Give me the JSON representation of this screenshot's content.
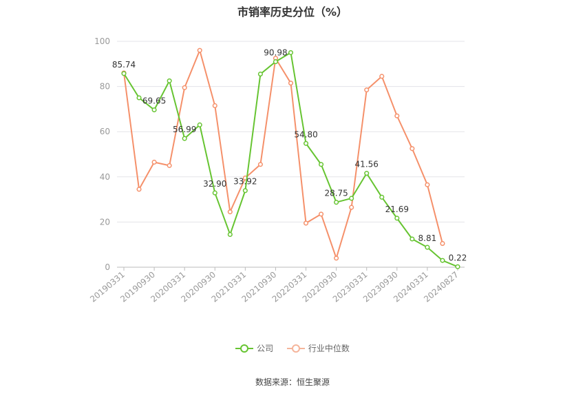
{
  "chart_data": {
    "type": "line",
    "title": "市销率历史分位（%）",
    "ylim": [
      0,
      100
    ],
    "yticks": [
      0,
      20,
      40,
      60,
      80,
      100
    ],
    "x": [
      "20190331",
      "20190630",
      "20190930",
      "20191231",
      "20200331",
      "20200630",
      "20200930",
      "20201231",
      "20210331",
      "20210630",
      "20210930",
      "20211231",
      "20220331",
      "20220630",
      "20220930",
      "20221231",
      "20230331",
      "20230630",
      "20230930",
      "20231231",
      "20240331",
      "20240630",
      "20240827"
    ],
    "xtick_labels": [
      "20190331",
      "20190930",
      "20200331",
      "20200930",
      "20210331",
      "20210930",
      "20220331",
      "20220930",
      "20230331",
      "20230930",
      "20240331",
      "20240827"
    ],
    "series": [
      {
        "name": "公司",
        "color": "#66c431",
        "values": [
          85.74,
          75.0,
          69.65,
          82.5,
          56.99,
          63.0,
          32.9,
          14.5,
          33.92,
          85.5,
          90.98,
          95.0,
          54.8,
          45.5,
          28.75,
          30.5,
          41.56,
          31.0,
          21.69,
          12.5,
          8.81,
          3.0,
          0.22
        ],
        "labels": {
          "0": "85.74",
          "2": "69.65",
          "4": "56.99",
          "6": "32.90",
          "8": "33.92",
          "10": "90.98",
          "12": "54.80",
          "14": "28.75",
          "16": "41.56",
          "18": "21.69",
          "20": "8.81",
          "22": "0.22"
        }
      },
      {
        "name": "行业中位数",
        "color": "#f5906a",
        "values": [
          86.0,
          34.5,
          46.5,
          45.0,
          79.5,
          96.0,
          71.5,
          24.5,
          39.5,
          45.5,
          92.5,
          81.5,
          19.5,
          23.5,
          4.0,
          26.5,
          78.5,
          84.5,
          67.0,
          52.5,
          36.5,
          10.5,
          null
        ]
      }
    ],
    "legend_position": "bottom-center",
    "grid": true
  },
  "source_text": "数据来源：恒生聚源"
}
